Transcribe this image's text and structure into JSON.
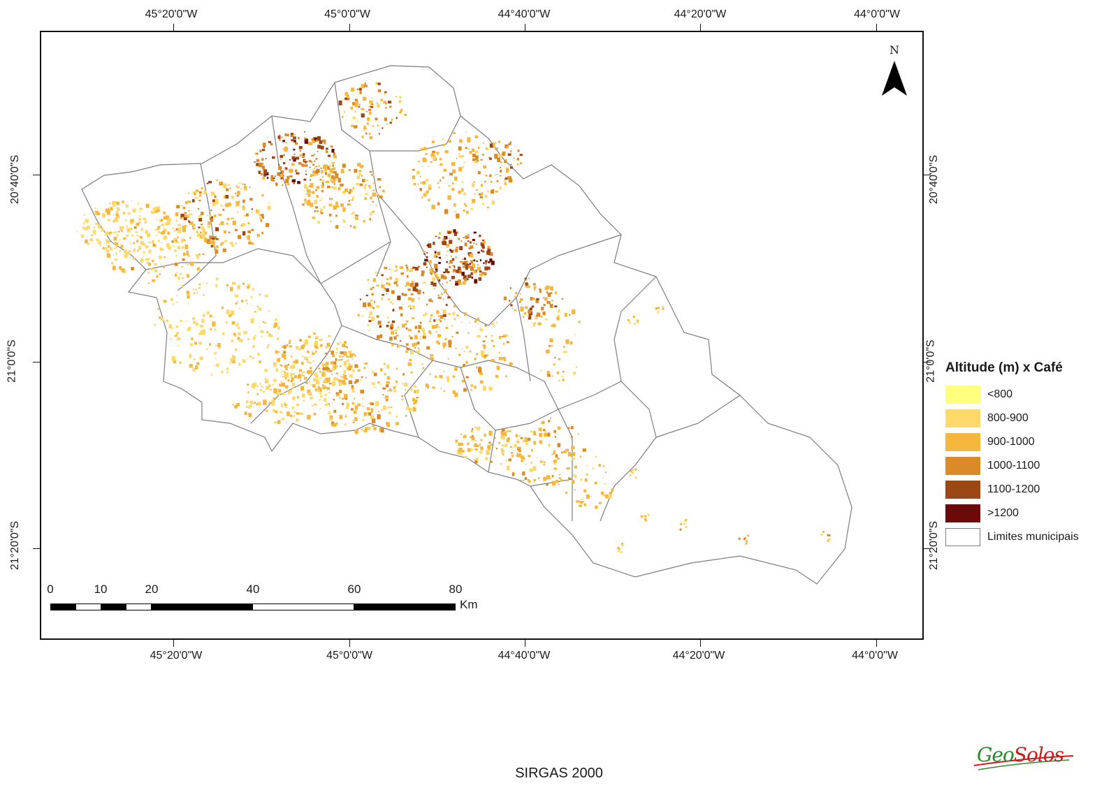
{
  "graticule": {
    "longitudes": [
      "45°20'0\"W",
      "45°0'0\"W",
      "44°40'0\"W",
      "44°20'0\"W",
      "44°0'0\"W"
    ],
    "latitudes": [
      "20°40'0\"S",
      "21°0'0\"S",
      "21°20'0\"S"
    ]
  },
  "north_arrow": {
    "letter": "N"
  },
  "legend": {
    "title": "Altitude (m) x Café",
    "items": [
      {
        "label": "<800",
        "color": "#ffff80"
      },
      {
        "label": "800-900",
        "color": "#fcd96a"
      },
      {
        "label": "900-1000",
        "color": "#f5b73e"
      },
      {
        "label": "1000-1100",
        "color": "#db8a28"
      },
      {
        "label": "1100-1200",
        "color": "#9c4515"
      },
      {
        "label": ">1200",
        "color": "#6b0a08"
      },
      {
        "label": "Limites municipais",
        "color": "#ffffff"
      }
    ]
  },
  "scale_bar": {
    "ticks": [
      "0",
      "10",
      "20",
      "40",
      "60",
      "80"
    ],
    "unit": "Km"
  },
  "crs": "SIRGAS 2000",
  "logo": {
    "part1": "Geo",
    "part2": "Solos"
  }
}
